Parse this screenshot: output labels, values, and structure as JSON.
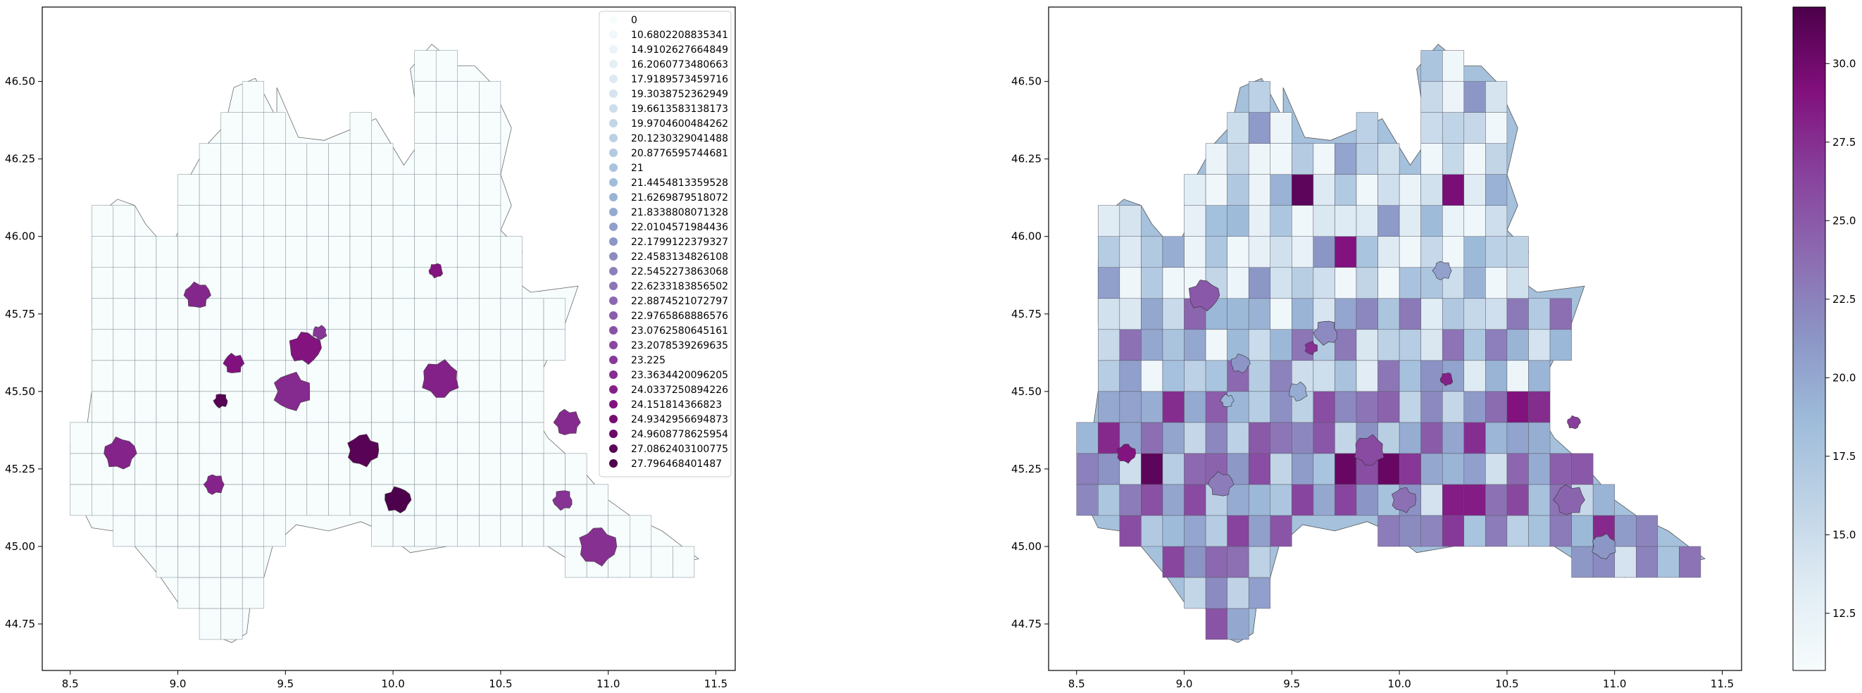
{
  "chart_data": [
    {
      "type": "choropleth-map",
      "region": "Lombardy",
      "xlim": [
        8.37,
        11.59
      ],
      "ylim": [
        44.6,
        46.74
      ],
      "xticks": [
        "8.5",
        "9.0",
        "9.5",
        "10.0",
        "10.5",
        "11.0",
        "11.5"
      ],
      "yticks": [
        "44.75",
        "45.00",
        "45.25",
        "45.50",
        "45.75",
        "46.00",
        "46.25",
        "46.50"
      ],
      "grid_cell_deg": 0.1,
      "base_value": 0,
      "colormap": "BuPu",
      "legend_position": "upper-right",
      "legend_title": "",
      "legend_values": [
        "0",
        "10.6802208835341",
        "14.9102627664849",
        "16.2060773480663",
        "17.9189573459716",
        "19.3038752362949",
        "19.6613583138173",
        "19.9704600484262",
        "20.1230329041488",
        "20.8776595744681",
        "21",
        "21.4454813359528",
        "21.6269879518072",
        "21.8338808071328",
        "22.0104571984436",
        "22.1799122379327",
        "22.4583134826108",
        "22.5452273863068",
        "22.6233183856502",
        "22.8874521072797",
        "22.9765868886576",
        "23.0762580645161",
        "23.2078539269635",
        "23.225",
        "23.3634420096205",
        "24.0337250894226",
        "24.151814366823",
        "24.9342956694873",
        "24.9608778625954",
        "27.0862403100775",
        "27.796468401487"
      ],
      "colored_regions": [
        {
          "lon": 9.2,
          "lat": 45.47,
          "value": 27.0862403100775
        },
        {
          "lon": 9.26,
          "lat": 45.59,
          "value": 24.151814366823
        },
        {
          "lon": 10.02,
          "lat": 45.15,
          "value": 27.796468401487
        },
        {
          "lon": 9.86,
          "lat": 45.31,
          "value": 27.0862403100775
        },
        {
          "lon": 10.22,
          "lat": 45.54,
          "value": 23.0762580645161
        },
        {
          "lon": 10.2,
          "lat": 45.89,
          "value": 24.0337250894226
        },
        {
          "lon": 9.17,
          "lat": 45.2,
          "value": 22.8874521072797
        },
        {
          "lon": 9.09,
          "lat": 45.81,
          "value": 22.6233183856502
        },
        {
          "lon": 9.59,
          "lat": 45.64,
          "value": 24.0337250894226
        },
        {
          "lon": 9.53,
          "lat": 45.5,
          "value": 22.4583134826108
        },
        {
          "lon": 9.66,
          "lat": 45.69,
          "value": 21.6269879518072
        },
        {
          "lon": 10.79,
          "lat": 45.15,
          "value": 21.8338808071328
        },
        {
          "lon": 10.81,
          "lat": 45.4,
          "value": 22.4583134826108
        },
        {
          "lon": 8.73,
          "lat": 45.3,
          "value": 22.8874521072797
        },
        {
          "lon": 10.95,
          "lat": 45.0,
          "value": 22.0104571984436
        }
      ]
    },
    {
      "type": "heatmap",
      "region": "Lombardy",
      "xlim": [
        8.37,
        11.59
      ],
      "ylim": [
        44.6,
        46.74
      ],
      "xticks": [
        "8.5",
        "9.0",
        "9.5",
        "10.0",
        "10.5",
        "11.0",
        "11.5"
      ],
      "yticks": [
        "44.75",
        "45.00",
        "45.25",
        "45.50",
        "45.75",
        "46.00",
        "46.25",
        "46.50"
      ],
      "colormap": "BuPu",
      "colorbar_range": [
        10.68,
        31.8
      ],
      "colorbar_ticks": [
        "12.5",
        "15.0",
        "17.5",
        "20.0",
        "22.5",
        "25.0",
        "27.5",
        "30.0"
      ],
      "grid_cell_deg": 0.1,
      "cell_value_range": [
        11.5,
        31.0
      ],
      "hotspots": [
        {
          "lon": 9.55,
          "lat": 46.15,
          "value": 31.0
        },
        {
          "lon": 10.25,
          "lat": 46.15,
          "value": 29.5
        },
        {
          "lon": 9.75,
          "lat": 45.95,
          "value": 29.0
        },
        {
          "lon": 8.85,
          "lat": 45.25,
          "value": 31.0
        },
        {
          "lon": 9.75,
          "lat": 45.25,
          "value": 30.5
        },
        {
          "lon": 9.95,
          "lat": 45.25,
          "value": 30.5
        },
        {
          "lon": 10.25,
          "lat": 45.15,
          "value": 28.5
        },
        {
          "lon": 10.35,
          "lat": 45.15,
          "value": 28.5
        },
        {
          "lon": 10.55,
          "lat": 45.45,
          "value": 29.0
        }
      ]
    }
  ]
}
